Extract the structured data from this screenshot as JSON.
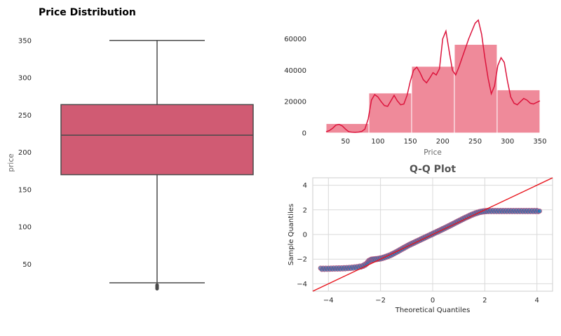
{
  "chart_data": [
    {
      "type": "box",
      "title": "Price Distribution",
      "xlabel": "",
      "ylabel": "price",
      "ylim": [
        10,
        362
      ],
      "yticks": [
        50,
        100,
        150,
        200,
        250,
        300,
        350
      ],
      "box": {
        "whisker_low": 25,
        "q1": 170,
        "median": 223,
        "q3": 264,
        "whisker_high": 350,
        "outliers": [
          17,
          18,
          19,
          20,
          21,
          22
        ]
      },
      "colors": {
        "box": "#D05B73",
        "lines": "#4a4a4a"
      },
      "grid": false
    },
    {
      "type": "histogram",
      "title": "",
      "xlabel": "Price",
      "ylabel": "",
      "xlim": [
        7,
        362
      ],
      "ylim": [
        0,
        75000
      ],
      "xticks": [
        50,
        100,
        150,
        200,
        250,
        300,
        350
      ],
      "yticks": [
        0,
        20000,
        40000,
        60000
      ],
      "bins": [
        {
          "x0": 20,
          "x1": 86,
          "count": 6000
        },
        {
          "x0": 86,
          "x1": 152,
          "count": 25500
        },
        {
          "x0": 152,
          "x1": 218,
          "count": 42500
        },
        {
          "x0": 218,
          "x1": 284,
          "count": 56500
        },
        {
          "x0": 284,
          "x1": 350,
          "count": 27500
        }
      ],
      "kde": {
        "x": [
          20,
          25,
          30,
          35,
          40,
          45,
          50,
          55,
          60,
          65,
          70,
          75,
          80,
          85,
          90,
          95,
          100,
          105,
          110,
          115,
          120,
          125,
          130,
          135,
          140,
          145,
          150,
          155,
          160,
          165,
          170,
          175,
          180,
          185,
          190,
          195,
          200,
          205,
          210,
          215,
          220,
          225,
          230,
          235,
          240,
          245,
          250,
          255,
          260,
          265,
          270,
          275,
          280,
          285,
          290,
          295,
          300,
          305,
          310,
          315,
          320,
          325,
          330,
          335,
          340,
          345,
          350
        ],
        "y": [
          800,
          1500,
          3000,
          5000,
          5500,
          4500,
          2500,
          800,
          500,
          400,
          600,
          1000,
          2500,
          9000,
          21000,
          24500,
          23000,
          20000,
          17500,
          17000,
          20500,
          24000,
          20500,
          18000,
          18500,
          24000,
          33000,
          40000,
          42000,
          38500,
          34000,
          32000,
          35000,
          38500,
          37000,
          41000,
          60000,
          65000,
          52000,
          40000,
          37000,
          42000,
          48000,
          54000,
          60000,
          65000,
          70000,
          72000,
          63000,
          48000,
          35000,
          25000,
          30000,
          43000,
          48000,
          45000,
          33000,
          23000,
          19000,
          18000,
          20000,
          22000,
          21000,
          19000,
          18500,
          19500,
          20500
        ]
      },
      "colors": {
        "bars": "#EF8A9A",
        "kde": "#DC143C"
      },
      "grid": false
    },
    {
      "type": "scatter",
      "title": "Q-Q Plot",
      "xlabel": "Theoretical Quantiles",
      "ylabel": "Sample Quantiles",
      "xlim": [
        -4.6,
        4.6
      ],
      "ylim": [
        -4.6,
        4.6
      ],
      "xticks": [
        -4,
        -2,
        0,
        2,
        4
      ],
      "yticks": [
        -4,
        -2,
        0,
        2,
        4
      ],
      "reference_line": {
        "slope": 1,
        "intercept": 0,
        "color": "#E8141C"
      },
      "points": {
        "x": [
          -4.3,
          -4.1,
          -3.9,
          -3.7,
          -3.5,
          -3.3,
          -3.1,
          -2.9,
          -2.7,
          -2.55,
          -2.45,
          -2.35,
          -2.25,
          -2.1,
          -1.95,
          -1.8,
          -1.65,
          -1.5,
          -1.35,
          -1.2,
          -1.05,
          -0.9,
          -0.75,
          -0.6,
          -0.45,
          -0.3,
          -0.15,
          0,
          0.15,
          0.3,
          0.45,
          0.6,
          0.75,
          0.9,
          1.05,
          1.2,
          1.35,
          1.5,
          1.65,
          1.8,
          1.95,
          2.1,
          2.3,
          2.5,
          2.7,
          2.9,
          3.1,
          3.3,
          3.5,
          3.7,
          3.9,
          4.1
        ],
        "y": [
          -2.78,
          -2.78,
          -2.77,
          -2.76,
          -2.75,
          -2.73,
          -2.7,
          -2.65,
          -2.58,
          -2.4,
          -2.15,
          -2.05,
          -2.02,
          -1.98,
          -1.92,
          -1.82,
          -1.7,
          -1.55,
          -1.38,
          -1.2,
          -1.02,
          -0.85,
          -0.7,
          -0.55,
          -0.4,
          -0.25,
          -0.1,
          0.05,
          0.2,
          0.35,
          0.5,
          0.66,
          0.82,
          0.98,
          1.14,
          1.3,
          1.45,
          1.6,
          1.72,
          1.82,
          1.88,
          1.9,
          1.9,
          1.9,
          1.9,
          1.9,
          1.9,
          1.9,
          1.9,
          1.9,
          1.9,
          1.9
        ]
      },
      "colors": {
        "points": "#1F77B4",
        "points_edge": "#C0507A"
      },
      "grid": true
    }
  ]
}
